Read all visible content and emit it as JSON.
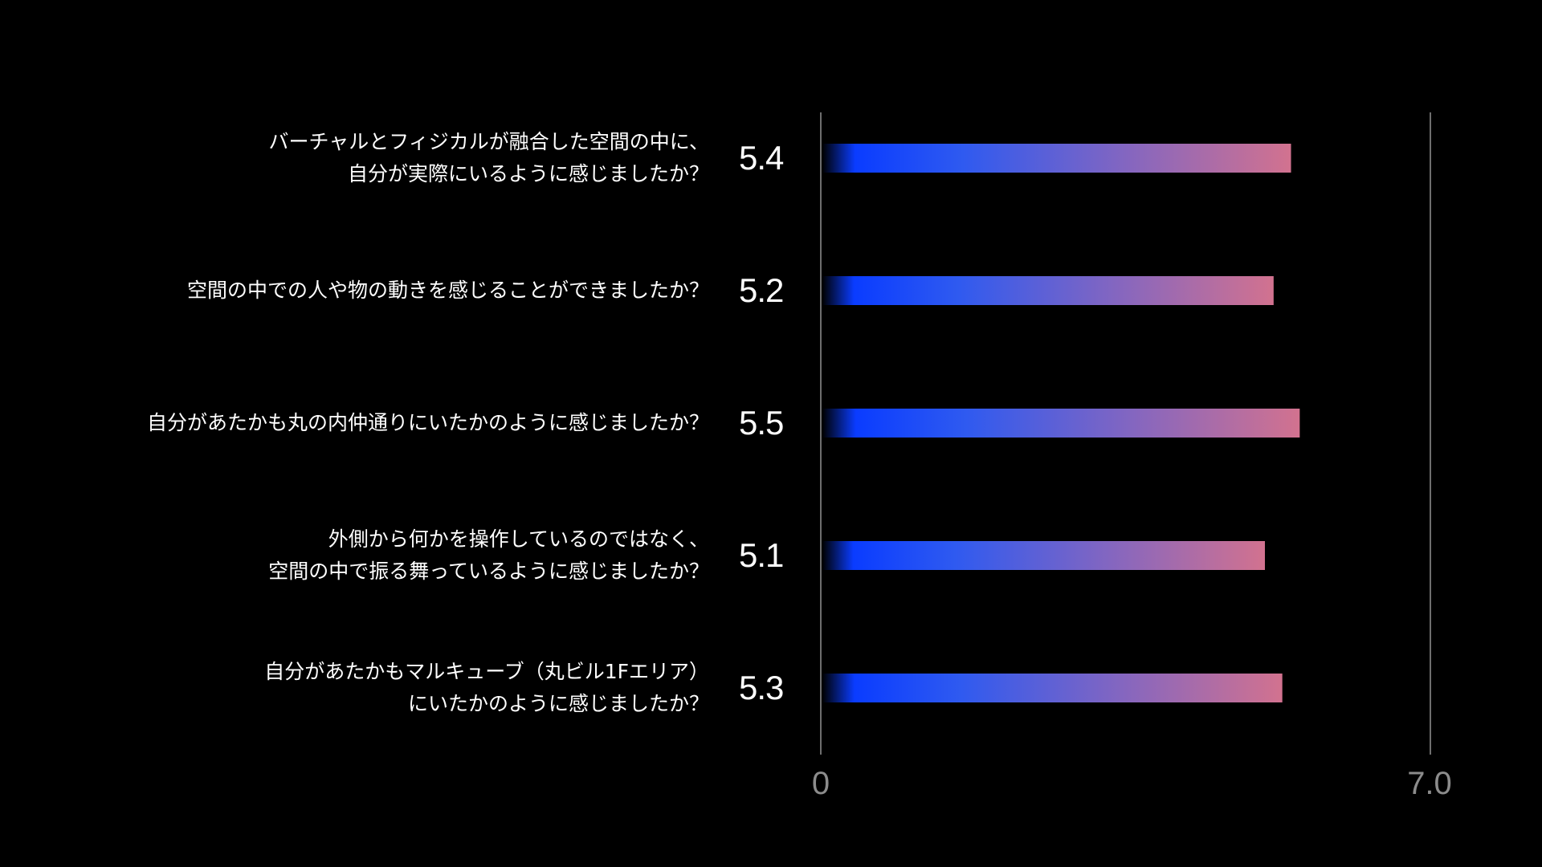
{
  "chart_data": {
    "type": "bar",
    "orientation": "horizontal",
    "categories": [
      "バーチャルとフィジカルが融合した空間の中に、\n自分が実際にいるように感じましたか？",
      "空間の中での人や物の動きを感じることができましたか？",
      "自分があたかも丸の内仲通りにいたかのように感じましたか？",
      "外側から何かを操作しているのではなく、\n空間の中で振る舞っているように感じましたか？",
      "自分があたかもマルキューブ（丸ビル1Fエリア）\nにいたかのように感じましたか？"
    ],
    "values": [
      5.4,
      5.2,
      5.5,
      5.1,
      5.3
    ],
    "value_labels": [
      "5.4",
      "5.2",
      "5.5",
      "5.1",
      "5.3"
    ],
    "xlim": [
      0,
      7.0
    ],
    "tick_labels": [
      "0",
      "7.0"
    ],
    "grid": false,
    "legend": "none",
    "colors": {
      "background": "#000000",
      "bar_start": "#0a3cff",
      "bar_mid": "#2f5af0",
      "bar_end": "#d2728f",
      "axis_line": "#6e6e6e",
      "tick_text": "#8c8c8c",
      "text": "#ffffff"
    }
  }
}
